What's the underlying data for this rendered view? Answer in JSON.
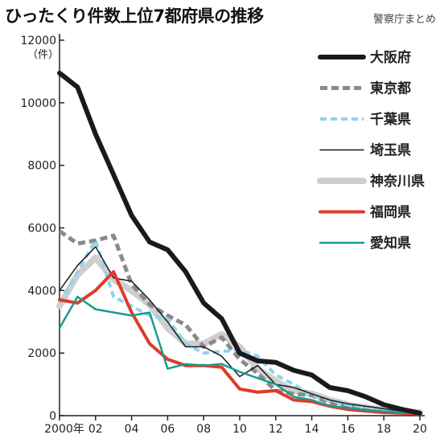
{
  "chart_data": {
    "type": "line",
    "title": "ひったくり件数上位7都府県の推移",
    "source": "警察庁まとめ",
    "ylabel_unit": "（件）",
    "xlabel": "",
    "ylim": [
      0,
      12000
    ],
    "y_ticks": [
      0,
      2000,
      4000,
      6000,
      8000,
      10000,
      12000
    ],
    "y_tick_labels": [
      "0",
      "2000",
      "4000",
      "6000",
      "8000",
      "10000",
      "12000"
    ],
    "x": [
      2000,
      2001,
      2002,
      2003,
      2004,
      2005,
      2006,
      2007,
      2008,
      2009,
      2010,
      2011,
      2012,
      2013,
      2014,
      2015,
      2016,
      2017,
      2018,
      2019,
      2020
    ],
    "x_ticks": [
      2000,
      2002,
      2004,
      2006,
      2008,
      2010,
      2012,
      2014,
      2016,
      2018,
      2020
    ],
    "x_tick_labels": [
      "2000年",
      "02",
      "04",
      "06",
      "08",
      "10",
      "12",
      "14",
      "16",
      "18",
      "20"
    ],
    "grid": false,
    "legend_position": "top-right",
    "series": [
      {
        "name": "大阪府",
        "color": "#1a1a1a",
        "style": "solid",
        "width": 6,
        "values": [
          10950,
          10500,
          9000,
          7700,
          6400,
          5550,
          5300,
          4600,
          3600,
          3100,
          2000,
          1750,
          1700,
          1450,
          1300,
          900,
          800,
          600,
          350,
          200,
          80
        ]
      },
      {
        "name": "東京都",
        "color": "#8a8a8a",
        "style": "dashed",
        "width": 5,
        "values": [
          5900,
          5500,
          5600,
          5750,
          4200,
          3550,
          3200,
          2900,
          2200,
          2500,
          1800,
          1350,
          800,
          700,
          650,
          400,
          300,
          250,
          180,
          130,
          100
        ]
      },
      {
        "name": "千葉県",
        "color": "#8fd3ef",
        "style": "dashed",
        "width": 4,
        "values": [
          3600,
          4600,
          5600,
          3800,
          3500,
          3200,
          3100,
          2300,
          2000,
          2050,
          2100,
          1900,
          1300,
          1000,
          650,
          500,
          350,
          280,
          200,
          150,
          100
        ]
      },
      {
        "name": "埼玉県",
        "color": "#1a1a1a",
        "style": "solid",
        "width": 1.5,
        "values": [
          4000,
          4800,
          5400,
          4400,
          4300,
          3700,
          3000,
          2200,
          2200,
          1900,
          1250,
          1600,
          1000,
          900,
          700,
          500,
          380,
          300,
          220,
          150,
          100
        ]
      },
      {
        "name": "神奈川県",
        "color": "#cfcfcf",
        "style": "solid",
        "width": 8,
        "values": [
          3500,
          4500,
          5050,
          4350,
          4000,
          3550,
          2800,
          2300,
          2300,
          2600,
          2200,
          1500,
          1100,
          800,
          700,
          500,
          350,
          250,
          200,
          150,
          100
        ]
      },
      {
        "name": "福岡県",
        "color": "#e03a2a",
        "style": "solid",
        "width": 4,
        "values": [
          3700,
          3600,
          4000,
          4600,
          3300,
          2300,
          1800,
          1600,
          1600,
          1550,
          850,
          750,
          800,
          500,
          450,
          300,
          200,
          150,
          100,
          80,
          60
        ]
      },
      {
        "name": "愛知県",
        "color": "#1a9a8e",
        "style": "solid",
        "width": 2.5,
        "values": [
          2800,
          3800,
          3400,
          3300,
          3200,
          3300,
          1500,
          1650,
          1600,
          1650,
          1400,
          1200,
          1000,
          600,
          500,
          300,
          250,
          180,
          140,
          100,
          80
        ]
      }
    ]
  }
}
